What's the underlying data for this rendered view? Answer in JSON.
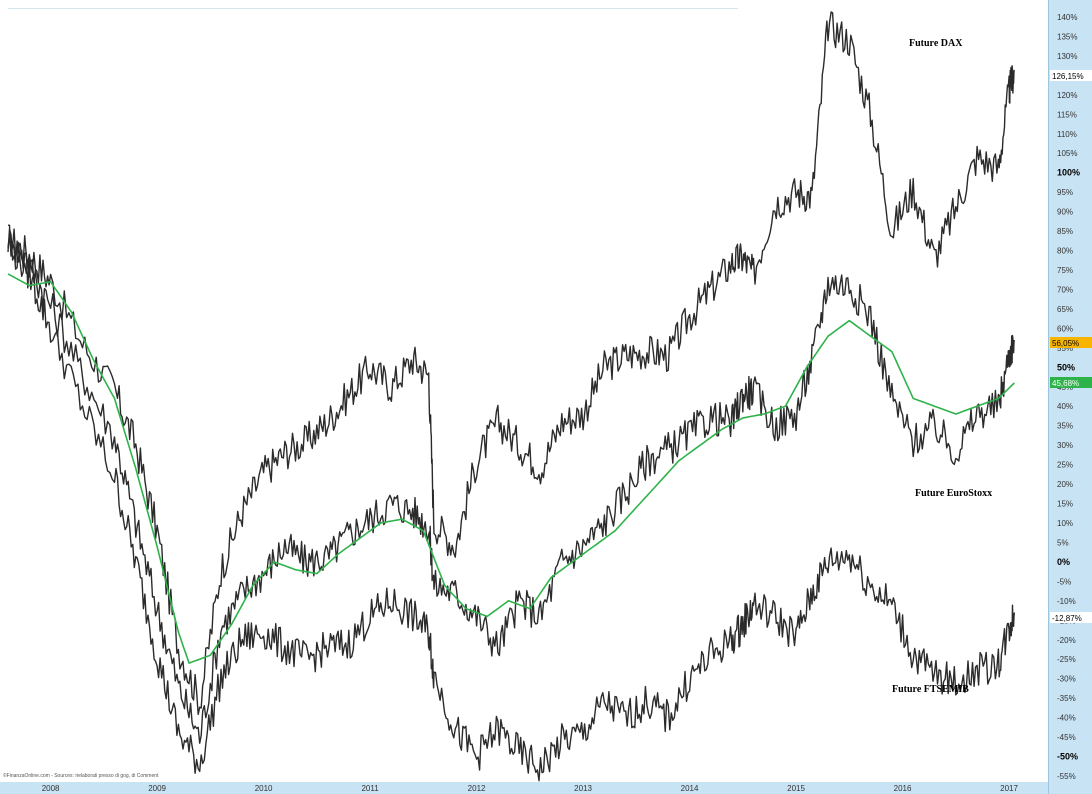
{
  "chart_data": {
    "type": "line",
    "title": "",
    "xlabel": "",
    "ylabel": "",
    "ylim": [
      -55,
      140
    ],
    "y_tick_labels": [
      "140%",
      "135%",
      "130%",
      "125%",
      "120%",
      "115%",
      "110%",
      "105%",
      "100%",
      "95%",
      "90%",
      "85%",
      "80%",
      "75%",
      "70%",
      "65%",
      "60%",
      "55%",
      "50%",
      "45%",
      "40%",
      "35%",
      "30%",
      "25%",
      "20%",
      "15%",
      "10%",
      "5%",
      "0%",
      "-5%",
      "-10%",
      "-15%",
      "-20%",
      "-25%",
      "-30%",
      "-35%",
      "-40%",
      "-45%",
      "-50%",
      "-55%"
    ],
    "x_tick_labels": [
      "2008",
      "2009",
      "2010",
      "2011",
      "2012",
      "2013",
      "2014",
      "2015",
      "2016",
      "2017"
    ],
    "xlim": [
      2007.6,
      2017.3
    ],
    "x_year_ticks": [
      2008,
      2009,
      2010,
      2011,
      2012,
      2013,
      2014,
      2015,
      2016,
      2017
    ],
    "grid": false,
    "series": [
      {
        "name": "Future DAX",
        "color": "#2b2b2b",
        "x": [
          2007.6,
          2007.8,
          2008.0,
          2008.3,
          2008.6,
          2008.8,
          2009.0,
          2009.2,
          2009.4,
          2009.6,
          2009.8,
          2010.0,
          2010.2,
          2010.4,
          2010.6,
          2010.8,
          2011.0,
          2011.2,
          2011.4,
          2011.55,
          2011.6,
          2011.8,
          2012.0,
          2012.2,
          2012.4,
          2012.6,
          2012.8,
          2013.0,
          2013.2,
          2013.4,
          2013.6,
          2013.8,
          2014.0,
          2014.2,
          2014.4,
          2014.5,
          2014.6,
          2014.8,
          2015.0,
          2015.15,
          2015.3,
          2015.5,
          2015.7,
          2015.9,
          2016.1,
          2016.3,
          2016.5,
          2016.7,
          2016.9,
          2017.0,
          2017.05
        ],
        "y": [
          83,
          79,
          72,
          56,
          44,
          30,
          8,
          -22,
          -36,
          -2,
          13,
          23,
          28,
          31,
          36,
          43,
          50,
          45,
          52,
          48,
          10,
          4,
          26,
          36,
          30,
          24,
          36,
          38,
          50,
          53,
          54,
          53,
          63,
          70,
          77,
          78,
          74,
          92,
          95,
          94,
          138,
          134,
          115,
          85,
          96,
          78,
          91,
          104,
          101,
          121,
          126
        ]
      },
      {
        "name": "Future EuroStoxx",
        "color": "#2b2b2b",
        "x": [
          2007.6,
          2007.8,
          2008.0,
          2008.3,
          2008.6,
          2008.8,
          2009.0,
          2009.2,
          2009.4,
          2009.6,
          2009.8,
          2010.0,
          2010.2,
          2010.4,
          2010.6,
          2010.8,
          2011.0,
          2011.2,
          2011.4,
          2011.55,
          2011.6,
          2011.8,
          2012.0,
          2012.2,
          2012.4,
          2012.6,
          2012.8,
          2013.0,
          2013.2,
          2013.4,
          2013.6,
          2013.8,
          2014.0,
          2014.2,
          2014.4,
          2014.5,
          2014.6,
          2014.8,
          2015.0,
          2015.15,
          2015.3,
          2015.5,
          2015.7,
          2015.9,
          2016.1,
          2016.3,
          2016.5,
          2016.7,
          2016.9,
          2017.0,
          2017.05
        ],
        "y": [
          83,
          76,
          66,
          48,
          32,
          10,
          -12,
          -32,
          -45,
          -17,
          -8,
          -3,
          4,
          0,
          1,
          7,
          11,
          15,
          13,
          9,
          -6,
          -8,
          -14,
          -22,
          -10,
          -14,
          0,
          4,
          10,
          18,
          26,
          29,
          33,
          37,
          36,
          43,
          44,
          35,
          38,
          52,
          72,
          71,
          63,
          42,
          31,
          35,
          28,
          38,
          40,
          53,
          57
        ]
      },
      {
        "name": "Future FTSEMIB",
        "color": "#2b2b2b",
        "x": [
          2007.6,
          2007.8,
          2008.0,
          2008.3,
          2008.6,
          2008.8,
          2009.0,
          2009.2,
          2009.4,
          2009.6,
          2009.8,
          2010.0,
          2010.2,
          2010.4,
          2010.6,
          2010.8,
          2011.0,
          2011.2,
          2011.4,
          2011.55,
          2011.6,
          2011.8,
          2012.0,
          2012.2,
          2012.4,
          2012.6,
          2012.8,
          2013.0,
          2013.2,
          2013.4,
          2013.6,
          2013.8,
          2014.0,
          2014.2,
          2014.4,
          2014.5,
          2014.6,
          2014.8,
          2015.0,
          2015.15,
          2015.3,
          2015.5,
          2015.7,
          2015.9,
          2016.1,
          2016.3,
          2016.5,
          2016.7,
          2016.9,
          2017.0,
          2017.05
        ],
        "y": [
          82,
          74,
          60,
          40,
          22,
          0,
          -24,
          -44,
          -52,
          -30,
          -20,
          -18,
          -22,
          -25,
          -22,
          -21,
          -14,
          -10,
          -14,
          -18,
          -29,
          -43,
          -50,
          -43,
          -49,
          -53,
          -46,
          -44,
          -36,
          -40,
          -36,
          -40,
          -30,
          -24,
          -20,
          -16,
          -11,
          -14,
          -19,
          -8,
          0,
          2,
          -6,
          -11,
          -24,
          -29,
          -31,
          -28,
          -26,
          -17,
          -13
        ]
      },
      {
        "name": "",
        "color": "#2eb34a",
        "x": [
          2007.6,
          2007.8,
          2008.0,
          2008.2,
          2008.4,
          2008.6,
          2008.8,
          2009.0,
          2009.2,
          2009.3,
          2009.5,
          2009.7,
          2009.9,
          2010.1,
          2010.3,
          2010.5,
          2010.7,
          2010.9,
          2011.1,
          2011.3,
          2011.5,
          2011.7,
          2011.9,
          2012.1,
          2012.3,
          2012.5,
          2012.7,
          2012.9,
          2013.1,
          2013.3,
          2013.5,
          2013.7,
          2013.9,
          2014.1,
          2014.3,
          2014.5,
          2014.7,
          2014.9,
          2015.1,
          2015.3,
          2015.5,
          2015.7,
          2015.9,
          2016.1,
          2016.3,
          2016.5,
          2016.7,
          2016.9,
          2017.05
        ],
        "y": [
          74,
          71,
          72,
          64,
          52,
          42,
          24,
          4,
          -18,
          -26,
          -24,
          -16,
          -6,
          0,
          -2,
          -3,
          2,
          6,
          10,
          11,
          8,
          -6,
          -12,
          -14,
          -10,
          -12,
          -4,
          0,
          4,
          8,
          14,
          20,
          26,
          30,
          34,
          37,
          38,
          40,
          50,
          58,
          62,
          58,
          54,
          42,
          40,
          38,
          40,
          42,
          46
        ]
      }
    ],
    "annotations": {
      "dax_label": "Future DAX",
      "eurostoxx_label": "Future EuroStoxx",
      "ftsemib_label": "Future FTSEMIB",
      "last_values": [
        {
          "text": "126,15%",
          "color": "#ffffff"
        },
        {
          "text": "56,05%",
          "color": "#f7b500"
        },
        {
          "text": "45,68%",
          "color": "#2eb34a"
        },
        {
          "text": "-12,87%",
          "color": "#ffffff"
        }
      ],
      "source": "©FinanzaOnline.com - Sources: rielaborati presso di gog, di Comment"
    }
  }
}
